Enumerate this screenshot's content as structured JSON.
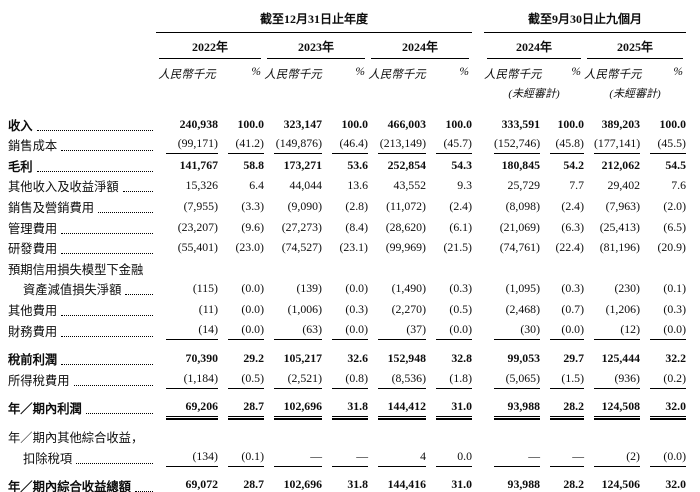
{
  "table": {
    "group_headers": [
      {
        "label": "截至12月31日止年度"
      },
      {
        "label": "截至9月30日止九個月"
      }
    ],
    "columns": [
      {
        "year": "2022年",
        "unit": "人民幣千元",
        "pct": "%",
        "note": ""
      },
      {
        "year": "2023年",
        "unit": "人民幣千元",
        "pct": "%",
        "note": ""
      },
      {
        "year": "2024年",
        "unit": "人民幣千元",
        "pct": "%",
        "note": ""
      },
      {
        "year": "2024年",
        "unit": "人民幣千元",
        "pct": "%",
        "note": "(未經審計)"
      },
      {
        "year": "2025年",
        "unit": "人民幣千元",
        "pct": "%",
        "note": "(未經審計)"
      }
    ],
    "rows": [
      {
        "label": "收入",
        "bold": true,
        "values": [
          "240,938",
          "100.0",
          "323,147",
          "100.0",
          "466,003",
          "100.0",
          "333,591",
          "100.0",
          "389,203",
          "100.0"
        ]
      },
      {
        "label": "銷售成本",
        "rule": true,
        "values": [
          "(99,171)",
          "(41.2)",
          "(149,876)",
          "(46.4)",
          "(213,149)",
          "(45.7)",
          "(152,746)",
          "(45.8)",
          "(177,141)",
          "(45.5)"
        ]
      },
      {
        "label": "毛利",
        "bold": true,
        "values": [
          "141,767",
          "58.8",
          "173,271",
          "53.6",
          "252,854",
          "54.3",
          "180,845",
          "54.2",
          "212,062",
          "54.5"
        ]
      },
      {
        "label": "其他收入及收益淨額",
        "values": [
          "15,326",
          "6.4",
          "44,044",
          "13.6",
          "43,552",
          "9.3",
          "25,729",
          "7.7",
          "29,402",
          "7.6"
        ]
      },
      {
        "label": "銷售及營銷費用",
        "values": [
          "(7,955)",
          "(3.3)",
          "(9,090)",
          "(2.8)",
          "(11,072)",
          "(2.4)",
          "(8,098)",
          "(2.4)",
          "(7,963)",
          "(2.0)"
        ]
      },
      {
        "label": "管理費用",
        "values": [
          "(23,207)",
          "(9.6)",
          "(27,273)",
          "(8.4)",
          "(28,620)",
          "(6.1)",
          "(21,069)",
          "(6.3)",
          "(25,413)",
          "(6.5)"
        ]
      },
      {
        "label": "研發費用",
        "values": [
          "(55,401)",
          "(23.0)",
          "(74,527)",
          "(23.1)",
          "(99,969)",
          "(21.5)",
          "(74,761)",
          "(22.4)",
          "(81,196)",
          "(20.9)"
        ]
      },
      {
        "label": "預期信用損失模型下金融"
      },
      {
        "label": "資產減值損失淨額",
        "indent": true,
        "values": [
          "(115)",
          "(0.0)",
          "(139)",
          "(0.0)",
          "(1,490)",
          "(0.3)",
          "(1,095)",
          "(0.3)",
          "(230)",
          "(0.1)"
        ]
      },
      {
        "label": "其他費用",
        "values": [
          "(11)",
          "(0.0)",
          "(1,006)",
          "(0.3)",
          "(2,270)",
          "(0.5)",
          "(2,468)",
          "(0.7)",
          "(1,206)",
          "(0.3)"
        ]
      },
      {
        "label": "財務費用",
        "rule": true,
        "values": [
          "(14)",
          "(0.0)",
          "(63)",
          "(0.0)",
          "(37)",
          "(0.0)",
          "(30)",
          "(0.0)",
          "(12)",
          "(0.0)"
        ]
      },
      {
        "label": "稅前利潤",
        "bold": true,
        "gap_top": true,
        "values": [
          "70,390",
          "29.2",
          "105,217",
          "32.6",
          "152,948",
          "32.8",
          "99,053",
          "29.7",
          "125,444",
          "32.2"
        ]
      },
      {
        "label": "所得稅費用",
        "rule": true,
        "values": [
          "(1,184)",
          "(0.5)",
          "(2,521)",
          "(0.8)",
          "(8,536)",
          "(1.8)",
          "(5,065)",
          "(1.5)",
          "(936)",
          "(0.2)"
        ]
      },
      {
        "label": "年／期內利潤",
        "bold": true,
        "double": true,
        "gap_top": true,
        "values": [
          "69,206",
          "28.7",
          "102,696",
          "31.8",
          "144,412",
          "31.0",
          "93,988",
          "28.2",
          "124,508",
          "32.0"
        ]
      },
      {
        "label": "年／期內其他綜合收益，",
        "gap_top": true
      },
      {
        "label": "扣除稅項",
        "indent": true,
        "rule": true,
        "values": [
          "(134)",
          "(0.1)",
          "—",
          "—",
          "4",
          "0.0",
          "—",
          "—",
          "(2)",
          "(0.0)"
        ]
      },
      {
        "label": "年／期內綜合收益總額",
        "bold": true,
        "double": true,
        "gap_top": true,
        "values": [
          "69,072",
          "28.7",
          "102,696",
          "31.8",
          "144,416",
          "31.0",
          "93,988",
          "28.2",
          "124,506",
          "32.0"
        ]
      }
    ]
  }
}
